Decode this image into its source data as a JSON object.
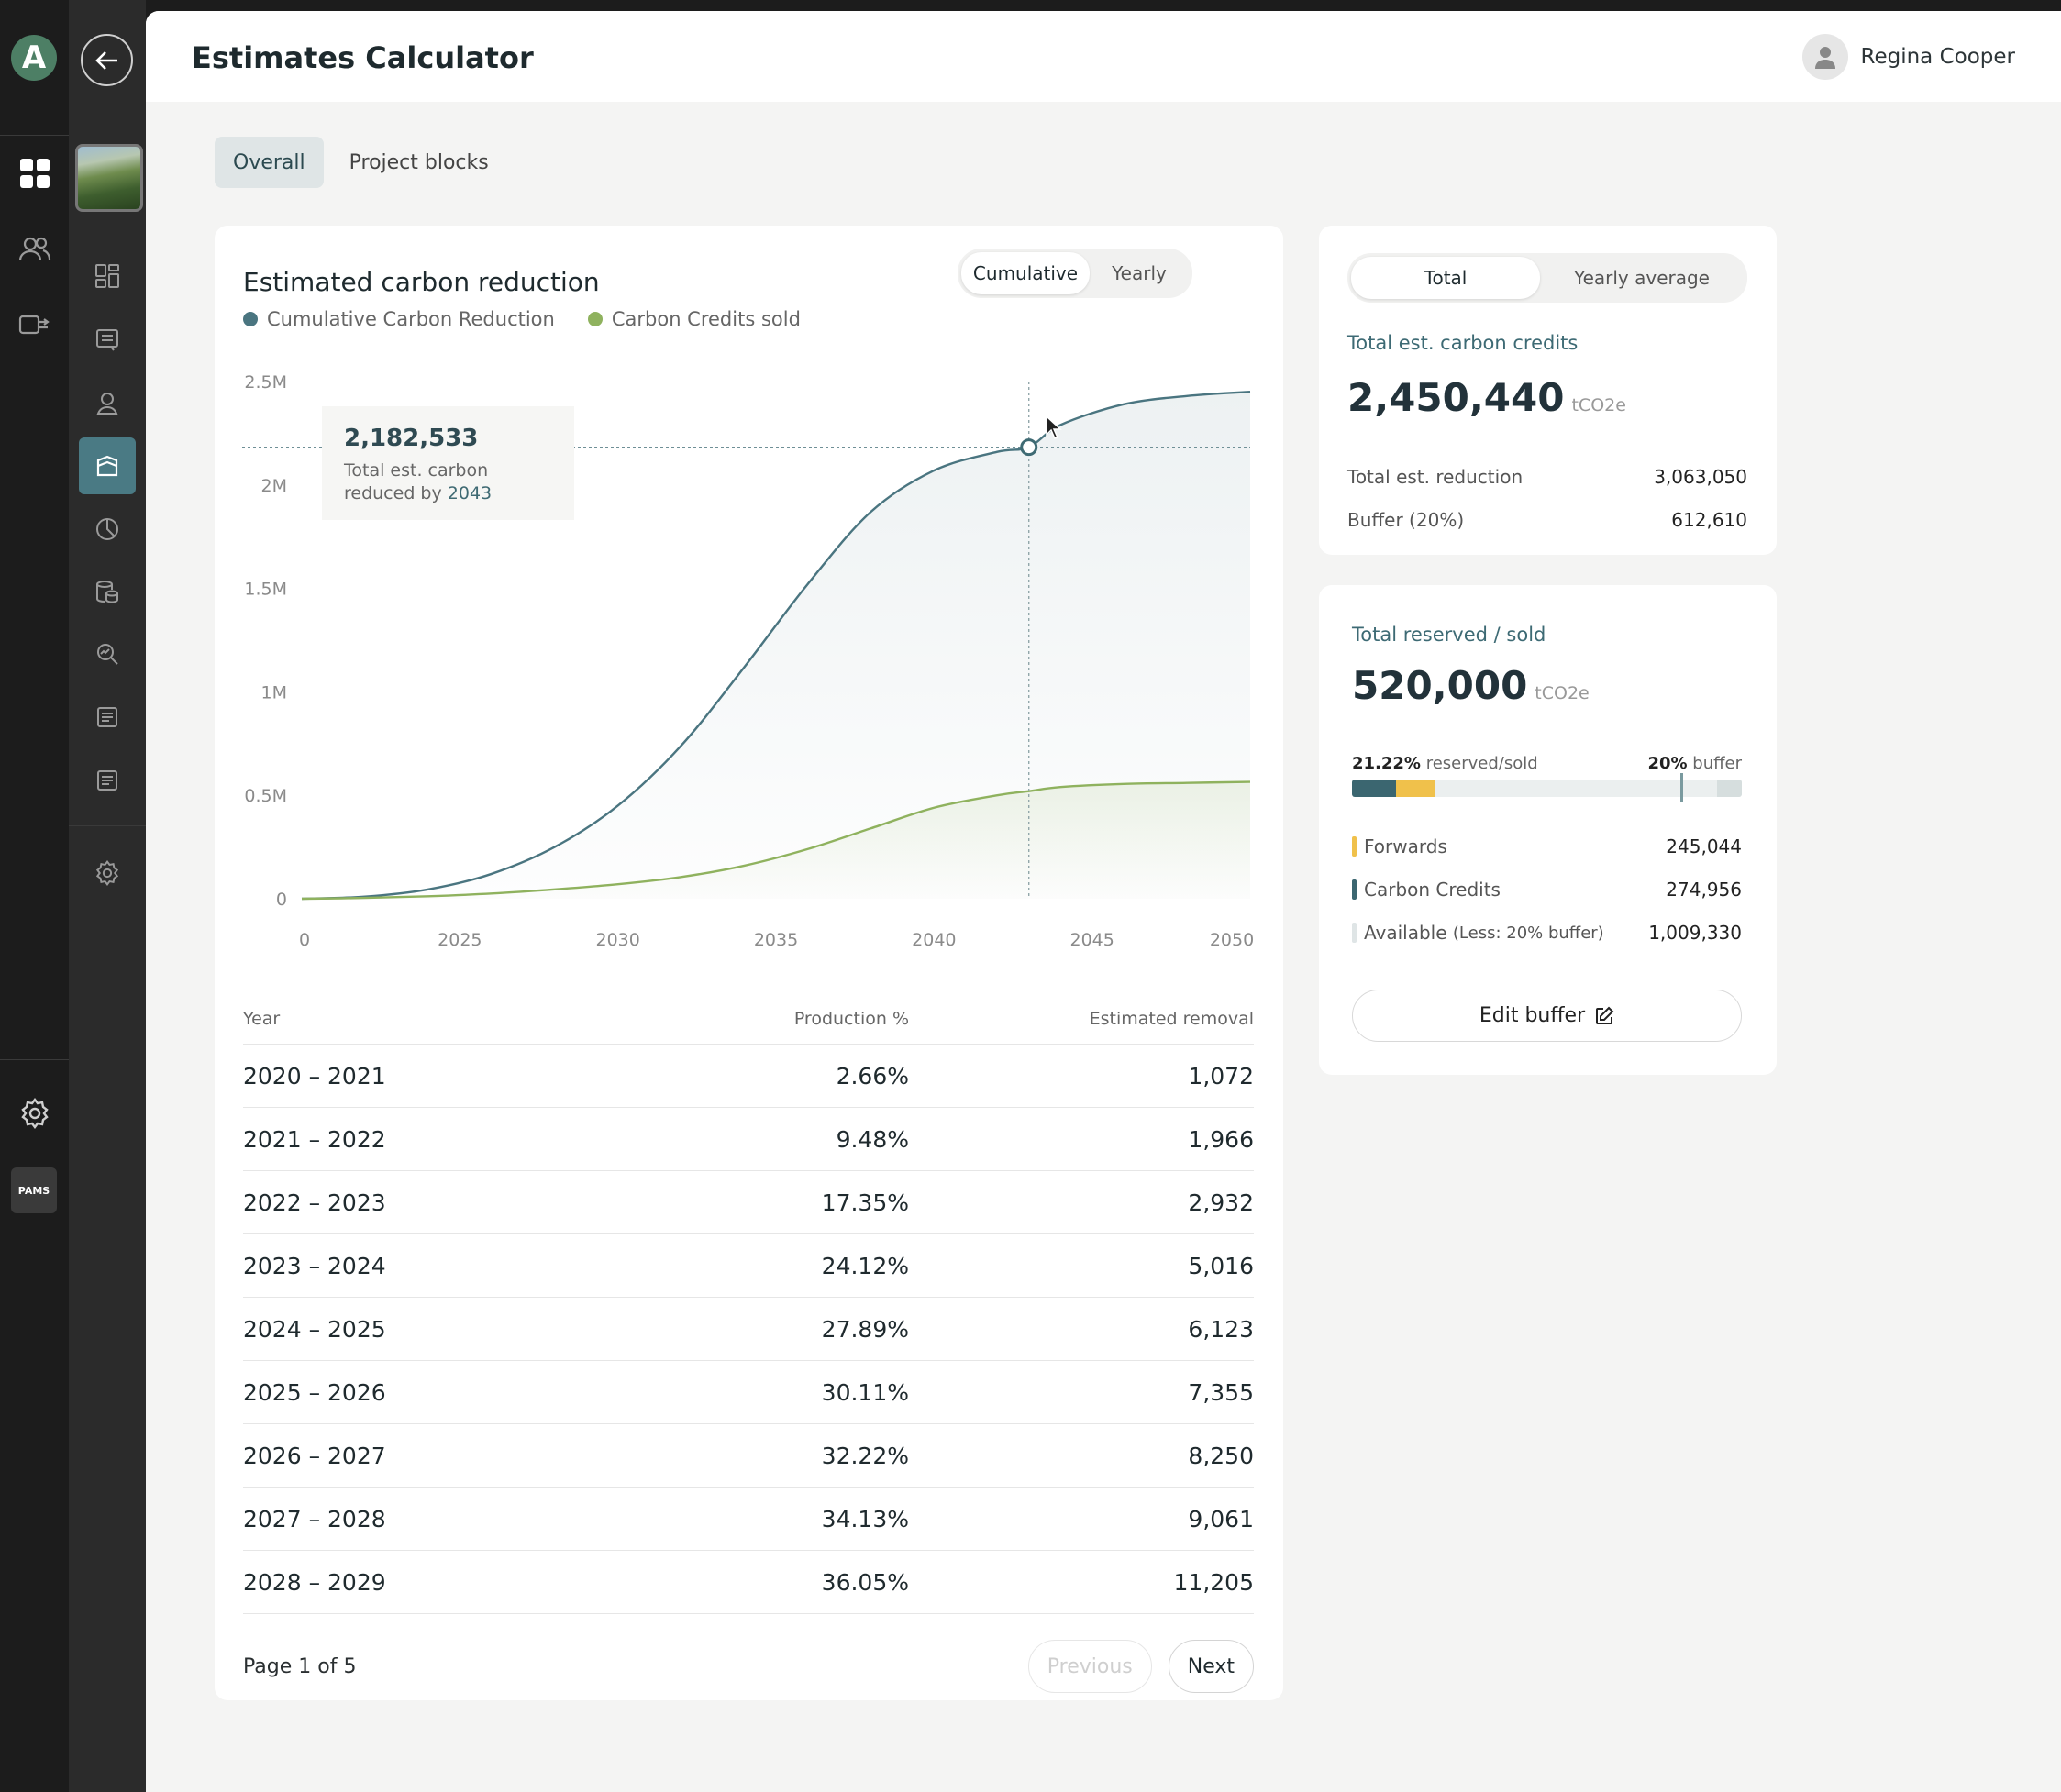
{
  "app": {
    "logo_letter": "A",
    "badge_text": "PAMS"
  },
  "header": {
    "title": "Estimates Calculator",
    "user_name": "Regina Cooper"
  },
  "tabs": [
    {
      "label": "Overall",
      "active": true
    },
    {
      "label": "Project blocks",
      "active": false
    }
  ],
  "chart_card": {
    "title": "Estimated carbon reduction",
    "toggle": [
      "Cumulative",
      "Yearly"
    ],
    "toggle_active": "Cumulative",
    "tooltip": {
      "value": "2,182,533",
      "text": "Total est. carbon reduced by",
      "year": "2043"
    }
  },
  "chart_data": {
    "type": "area",
    "title": "Estimated carbon reduction",
    "xlabel": "",
    "ylabel": "",
    "x_ticks": [
      "0",
      "2025",
      "2030",
      "2035",
      "2040",
      "2045",
      "2050"
    ],
    "y_ticks": [
      "0",
      "0.5M",
      "1M",
      "1.5M",
      "2M",
      "2.5M"
    ],
    "xlim": [
      2020,
      2050
    ],
    "ylim": [
      0,
      2500000
    ],
    "legend_position": "top-left",
    "grid": false,
    "highlight": {
      "x": 2043,
      "y": 2182533
    },
    "x": [
      2020,
      2022,
      2024,
      2026,
      2028,
      2030,
      2032,
      2034,
      2036,
      2038,
      2040,
      2042,
      2043,
      2044,
      2046,
      2048,
      2050
    ],
    "series": [
      {
        "name": "Cumulative Carbon Reduction",
        "color": "#4a7580",
        "values": [
          0,
          10000,
          45000,
          120000,
          250000,
          450000,
          740000,
          1120000,
          1520000,
          1870000,
          2070000,
          2160000,
          2182533,
          2290000,
          2390000,
          2430000,
          2450440
        ]
      },
      {
        "name": "Carbon Credits sold",
        "color": "#8fb25e",
        "values": [
          0,
          4000,
          12000,
          25000,
          45000,
          70000,
          105000,
          160000,
          240000,
          340000,
          440000,
          500000,
          520000,
          540000,
          555000,
          560000,
          565000
        ]
      }
    ]
  },
  "table": {
    "headers": [
      "Year",
      "Production %",
      "Estimated removal"
    ],
    "rows": [
      [
        "2020 – 2021",
        "2.66%",
        "1,072"
      ],
      [
        "2021 – 2022",
        "9.48%",
        "1,966"
      ],
      [
        "2022 – 2023",
        "17.35%",
        "2,932"
      ],
      [
        "2023 – 2024",
        "24.12%",
        "5,016"
      ],
      [
        "2024 – 2025",
        "27.89%",
        "6,123"
      ],
      [
        "2025 – 2026",
        "30.11%",
        "7,355"
      ],
      [
        "2026 – 2027",
        "32.22%",
        "8,250"
      ],
      [
        "2027 – 2028",
        "34.13%",
        "9,061"
      ],
      [
        "2028 – 2029",
        "36.05%",
        "11,205"
      ]
    ],
    "page_info": "Page 1 of 5",
    "prev_label": "Previous",
    "next_label": "Next"
  },
  "total_card": {
    "toggle": [
      "Total",
      "Yearly average"
    ],
    "toggle_active": "Total",
    "label": "Total est. carbon credits",
    "value": "2,450,440",
    "unit": "tCO2e",
    "rows": [
      {
        "k": "Total est. reduction",
        "v": "3,063,050"
      },
      {
        "k": "Buffer (20%)",
        "v": "612,610"
      }
    ]
  },
  "reserved_card": {
    "label": "Total reserved / sold",
    "value": "520,000",
    "unit": "tCO2e",
    "reserved_pct": "21.22%",
    "reserved_text": "reserved/sold",
    "buffer_pct": "20%",
    "buffer_text": "buffer",
    "bar": {
      "carbon_credits_fraction": 0.1122,
      "forwards_fraction": 0.1,
      "buffer_fraction": 0.2
    },
    "colors": {
      "forwards": "#f0c14b",
      "carbon_credits": "#3b6670",
      "available": "#dfe5e6"
    },
    "legend": [
      {
        "k": "Forwards",
        "v": "245,044",
        "color": "#f0c14b"
      },
      {
        "k": "Carbon Credits",
        "v": "274,956",
        "color": "#3b6670"
      },
      {
        "k": "Available",
        "k_note": "(Less: 20% buffer)",
        "v": "1,009,330",
        "color": "#dfe5e6"
      }
    ],
    "edit_label": "Edit buffer"
  },
  "icons": {
    "rail1": [
      "dashboard-icon",
      "users-icon",
      "transfer-icon",
      "settings-icon"
    ],
    "rail2": [
      "grid-icon",
      "list-icon",
      "location-icon",
      "project-icon",
      "pie-chart-icon",
      "coins-icon",
      "search-analytics-icon",
      "report-icon",
      "report-alt-icon",
      "settings-icon"
    ]
  }
}
